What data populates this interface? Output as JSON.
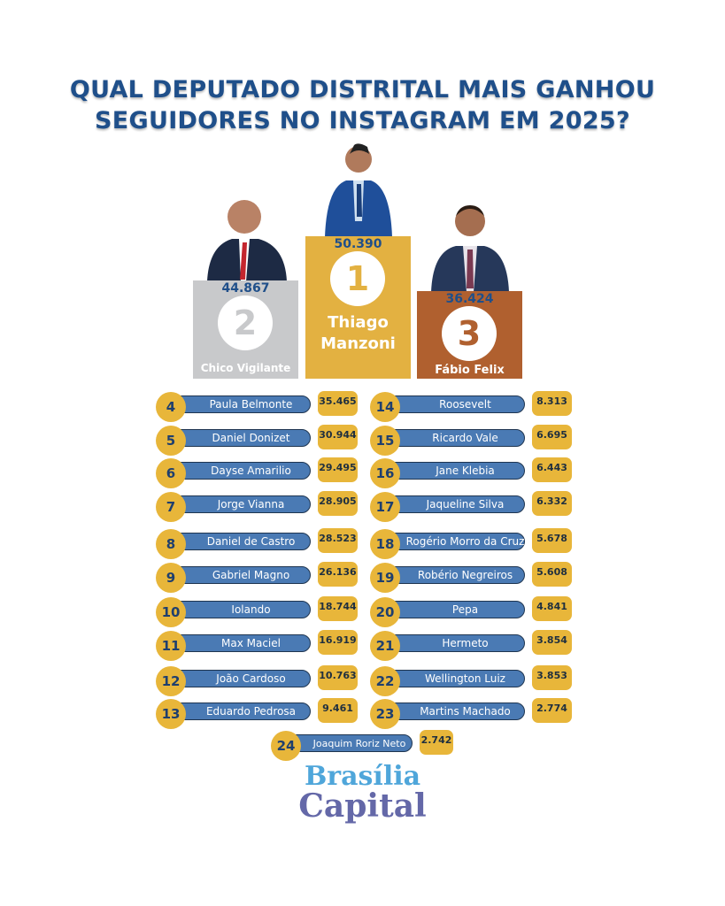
{
  "title": {
    "line1": "QUAL DEPUTADO DISTRITAL MAIS GANHOU",
    "line2": "SEGUIDORES NO INSTAGRAM EM 2025?"
  },
  "podium": [
    {
      "rank": "2",
      "name": "Chico Vigilante",
      "value": "44.867",
      "color": "#c8c9cb",
      "digit_color": "#c8c9cb"
    },
    {
      "rank": "1",
      "name": "Thiago Manzoni",
      "value": "50.390",
      "color": "#e3b141",
      "digit_color": "#e3b141"
    },
    {
      "rank": "3",
      "name": "Fábio Felix",
      "value": "36.424",
      "color": "#b0602f",
      "digit_color": "#b0602f"
    }
  ],
  "chart_data": {
    "type": "table",
    "title": "QUAL DEPUTADO DISTRITAL MAIS GANHOU SEGUIDORES NO INSTAGRAM EM 2025?",
    "columns": [
      "rank",
      "name",
      "followers_gained"
    ],
    "rows": [
      {
        "rank": "4",
        "name": "Paula Belmonte",
        "value": "35.465"
      },
      {
        "rank": "5",
        "name": "Daniel Donizet",
        "value": "30.944"
      },
      {
        "rank": "6",
        "name": "Dayse Amarilio",
        "value": "29.495"
      },
      {
        "rank": "7",
        "name": "Jorge Vianna",
        "value": "28.905"
      },
      {
        "rank": "8",
        "name": "Daniel de Castro",
        "value": "28.523"
      },
      {
        "rank": "9",
        "name": "Gabriel Magno",
        "value": "26.136"
      },
      {
        "rank": "10",
        "name": "Iolando",
        "value": "18.744"
      },
      {
        "rank": "11",
        "name": "Max Maciel",
        "value": "16.919"
      },
      {
        "rank": "12",
        "name": "João Cardoso",
        "value": "10.763"
      },
      {
        "rank": "13",
        "name": "Eduardo Pedrosa",
        "value": "9.461"
      },
      {
        "rank": "14",
        "name": "Roosevelt",
        "value": "8.313"
      },
      {
        "rank": "15",
        "name": "Ricardo Vale",
        "value": "6.695"
      },
      {
        "rank": "16",
        "name": "Jane Klebia",
        "value": "6.443"
      },
      {
        "rank": "17",
        "name": "Jaqueline Silva",
        "value": "6.332"
      },
      {
        "rank": "18",
        "name": "Rogério Morro da Cruz",
        "value": "5.678"
      },
      {
        "rank": "19",
        "name": "Robério Negreiros",
        "value": "5.608"
      },
      {
        "rank": "20",
        "name": "Pepa",
        "value": "4.841"
      },
      {
        "rank": "21",
        "name": "Hermeto",
        "value": "3.854"
      },
      {
        "rank": "22",
        "name": "Wellington Luiz",
        "value": "3.853"
      },
      {
        "rank": "23",
        "name": "Martins Machado",
        "value": "2.774"
      },
      {
        "rank": "24",
        "name": "Joaquim Roriz Neto",
        "value": "2.742"
      }
    ]
  },
  "logo": {
    "line1": "Brasília",
    "line2": "Capital",
    "color1": "#4fa6da",
    "color2": "#6468a8"
  }
}
